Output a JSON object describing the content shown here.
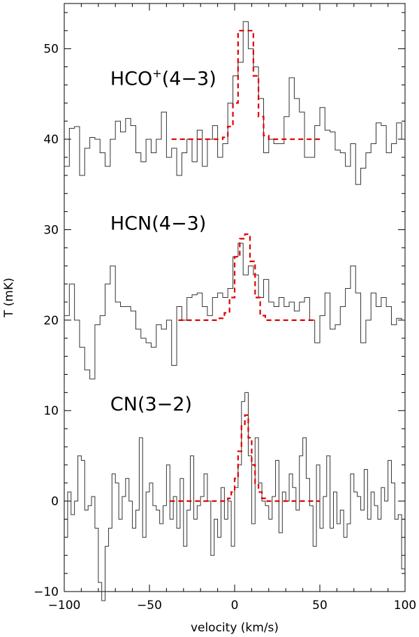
{
  "chart_data": {
    "type": "line",
    "xlabel": "velocity (km/s)",
    "ylabel": "T (mK)",
    "xlim": [
      -100,
      100
    ],
    "ylim": [
      -10,
      55
    ],
    "xticks": [
      -100,
      -50,
      0,
      50,
      100
    ],
    "yticks": [
      -10,
      0,
      10,
      20,
      30,
      40,
      50
    ],
    "x_minor_step": 10,
    "y_minor_step": 2,
    "grid": false,
    "colors": {
      "spectrum": "#333333",
      "fit": "#e00000"
    },
    "spectra": [
      {
        "label": {
          "main": "HCO",
          "sup": "+",
          "rest": "(4−3)"
        },
        "label_pos": {
          "x": -73,
          "y": 46
        },
        "step_x": [
          -100,
          -97,
          -94,
          -91,
          -88,
          -85,
          -82,
          -79,
          -76,
          -73,
          -70,
          -67,
          -64,
          -61,
          -58,
          -55,
          -52,
          -49,
          -46,
          -43,
          -40,
          -37,
          -34,
          -31,
          -28,
          -25,
          -22,
          -19,
          -16,
          -13,
          -10,
          -7,
          -4,
          -1,
          2,
          5,
          8,
          11,
          14,
          17,
          20,
          23,
          26,
          29,
          32,
          35,
          38,
          41,
          44,
          47,
          50,
          53,
          56,
          59,
          62,
          65,
          68,
          71,
          74,
          77,
          80,
          83,
          86,
          89,
          92,
          95,
          98
        ],
        "step_y": [
          37,
          41.2,
          41.4,
          36,
          39,
          40.2,
          40,
          38.5,
          37,
          40,
          42,
          40.8,
          42.3,
          41.5,
          38.5,
          37.5,
          40,
          38.5,
          40,
          43,
          38,
          39,
          36,
          38.5,
          40,
          37.5,
          41,
          37,
          40,
          41.5,
          38,
          39.5,
          44,
          47,
          48.5,
          53,
          50,
          48,
          44.5,
          38.5,
          40,
          39.5,
          39.5,
          42.5,
          46.8,
          44.5,
          43,
          38,
          38,
          41.5,
          43.5,
          41,
          40.8,
          38.8,
          38.5,
          37,
          39.5,
          35,
          36.8,
          38.5,
          39.5,
          41.8,
          41.5,
          38.5,
          39.5,
          41.8,
          40
        ],
        "fit_x": [
          -37,
          -34,
          -31,
          -28,
          -25,
          -22,
          -19,
          -16,
          -13,
          -10,
          -7,
          -4,
          -1,
          2,
          5,
          8,
          11,
          14,
          17,
          20,
          23,
          26,
          29,
          32,
          35,
          38,
          41,
          44,
          47,
          50
        ],
        "fit_y": [
          40,
          40,
          40,
          40,
          40,
          40,
          40,
          40,
          40,
          40,
          40.2,
          41.4,
          44,
          52,
          52,
          52,
          47,
          42.5,
          40.4,
          40,
          40,
          40,
          40,
          40,
          40,
          40,
          40,
          40,
          40,
          40
        ]
      },
      {
        "label": {
          "main": "HCN",
          "sup": "",
          "rest": "(4−3)"
        },
        "label_pos": {
          "x": -73,
          "y": 30
        },
        "step_x": [
          -100,
          -97,
          -94,
          -91,
          -88,
          -85,
          -82,
          -79,
          -76,
          -73,
          -70,
          -67,
          -64,
          -61,
          -58,
          -55,
          -52,
          -49,
          -46,
          -43,
          -40,
          -37,
          -34,
          -31,
          -28,
          -25,
          -22,
          -19,
          -16,
          -13,
          -10,
          -7,
          -4,
          -1,
          2,
          5,
          8,
          11,
          14,
          17,
          20,
          23,
          26,
          29,
          32,
          35,
          38,
          41,
          44,
          47,
          50,
          53,
          56,
          59,
          62,
          65,
          68,
          71,
          74,
          77,
          80,
          83,
          86,
          89,
          92,
          95,
          98
        ],
        "step_y": [
          20.5,
          24,
          20,
          17,
          14.5,
          13.5,
          19.5,
          20.5,
          24,
          26,
          22,
          21.5,
          21.5,
          21,
          19,
          18,
          17.5,
          17,
          19.5,
          19,
          20,
          15,
          21.5,
          20,
          22.5,
          22.8,
          23,
          21.5,
          20.5,
          22.5,
          23,
          22.5,
          23.5,
          27,
          28.5,
          25,
          26,
          25,
          22.5,
          24.5,
          22,
          21.5,
          22.5,
          21.5,
          22,
          21,
          22,
          22.5,
          20,
          17.5,
          20.5,
          23,
          19,
          19.5,
          21.5,
          23.5,
          26,
          23,
          17.5,
          20,
          23,
          21.5,
          22.5,
          21.5,
          19.5,
          20.2,
          20
        ],
        "fit_x": [
          -33,
          -30,
          -27,
          -24,
          -21,
          -18,
          -15,
          -12,
          -9,
          -6,
          -3,
          0,
          3,
          6,
          9,
          12,
          15,
          18,
          21,
          24,
          27,
          30,
          33,
          36,
          39,
          42,
          45,
          48
        ],
        "fit_y": [
          20,
          20,
          20,
          20,
          20,
          20,
          20,
          20,
          20.2,
          20.8,
          22.5,
          27,
          29,
          29.5,
          26.5,
          22.5,
          20.5,
          20,
          20,
          20,
          20,
          20,
          20,
          20,
          20,
          20,
          20,
          20
        ]
      },
      {
        "label": {
          "main": "CN",
          "sup": "",
          "rest": "(3−2)"
        },
        "label_pos": {
          "x": -73,
          "y": 10
        },
        "step_x": [
          -100,
          -98,
          -96,
          -94,
          -92,
          -90,
          -88,
          -86,
          -84,
          -82,
          -80,
          -78,
          -76,
          -74,
          -72,
          -70,
          -68,
          -66,
          -64,
          -62,
          -60,
          -58,
          -56,
          -54,
          -52,
          -50,
          -48,
          -46,
          -44,
          -42,
          -40,
          -38,
          -36,
          -34,
          -32,
          -30,
          -28,
          -26,
          -24,
          -22,
          -20,
          -18,
          -16,
          -14,
          -12,
          -10,
          -8,
          -6,
          -4,
          -2,
          0,
          2,
          4,
          6,
          8,
          10,
          12,
          14,
          16,
          18,
          20,
          22,
          24,
          26,
          28,
          30,
          32,
          34,
          36,
          38,
          40,
          42,
          44,
          46,
          48,
          50,
          52,
          54,
          56,
          58,
          60,
          62,
          64,
          66,
          68,
          70,
          72,
          74,
          76,
          78,
          80,
          82,
          84,
          86,
          88,
          90,
          92,
          94,
          96,
          98
        ],
        "step_y": [
          -4,
          1,
          -1.5,
          0,
          5,
          4.5,
          -1,
          -0.5,
          0.5,
          -3,
          -9,
          -11,
          -5,
          -3,
          3,
          2,
          -2,
          0.5,
          2.5,
          0,
          -3,
          -1,
          7,
          -4,
          1,
          2,
          -0.5,
          -1,
          -2.5,
          -0.5,
          4,
          -2,
          0.5,
          -3,
          2.5,
          -5,
          -1,
          5,
          -2,
          -0.5,
          0.5,
          3,
          0,
          -6,
          -2,
          -4,
          1.5,
          -2,
          0,
          -5,
          1.5,
          4,
          11,
          12,
          5,
          -2.5,
          7,
          2,
          0,
          -0.5,
          -2,
          0.5,
          4.5,
          -3.5,
          1,
          0,
          3,
          1.5,
          -1,
          5,
          7,
          2.5,
          -0.5,
          -5,
          4,
          -3,
          0.5,
          5,
          -3,
          1,
          -2.5,
          -1,
          -4,
          -2.5,
          3,
          1,
          0.5,
          -1,
          3.5,
          -2,
          1,
          -0.5,
          -2,
          1.5,
          0,
          4.5,
          2,
          -2,
          -1.5,
          -7.5
        ],
        "fit_x": [
          -38,
          -34,
          -30,
          -26,
          -22,
          -18,
          -14,
          -10,
          -6,
          -4,
          -2,
          0,
          2,
          4,
          6,
          8,
          10,
          12,
          14,
          16,
          18,
          22,
          26,
          30,
          34,
          38,
          42,
          46,
          50
        ],
        "fit_y": [
          0,
          0,
          0,
          0,
          0,
          0,
          0,
          0,
          0,
          0.3,
          1,
          2.5,
          5.5,
          8.5,
          9.5,
          7,
          4,
          2,
          1,
          0.3,
          0,
          0,
          0,
          0,
          0,
          0,
          0,
          0,
          0
        ]
      }
    ]
  }
}
